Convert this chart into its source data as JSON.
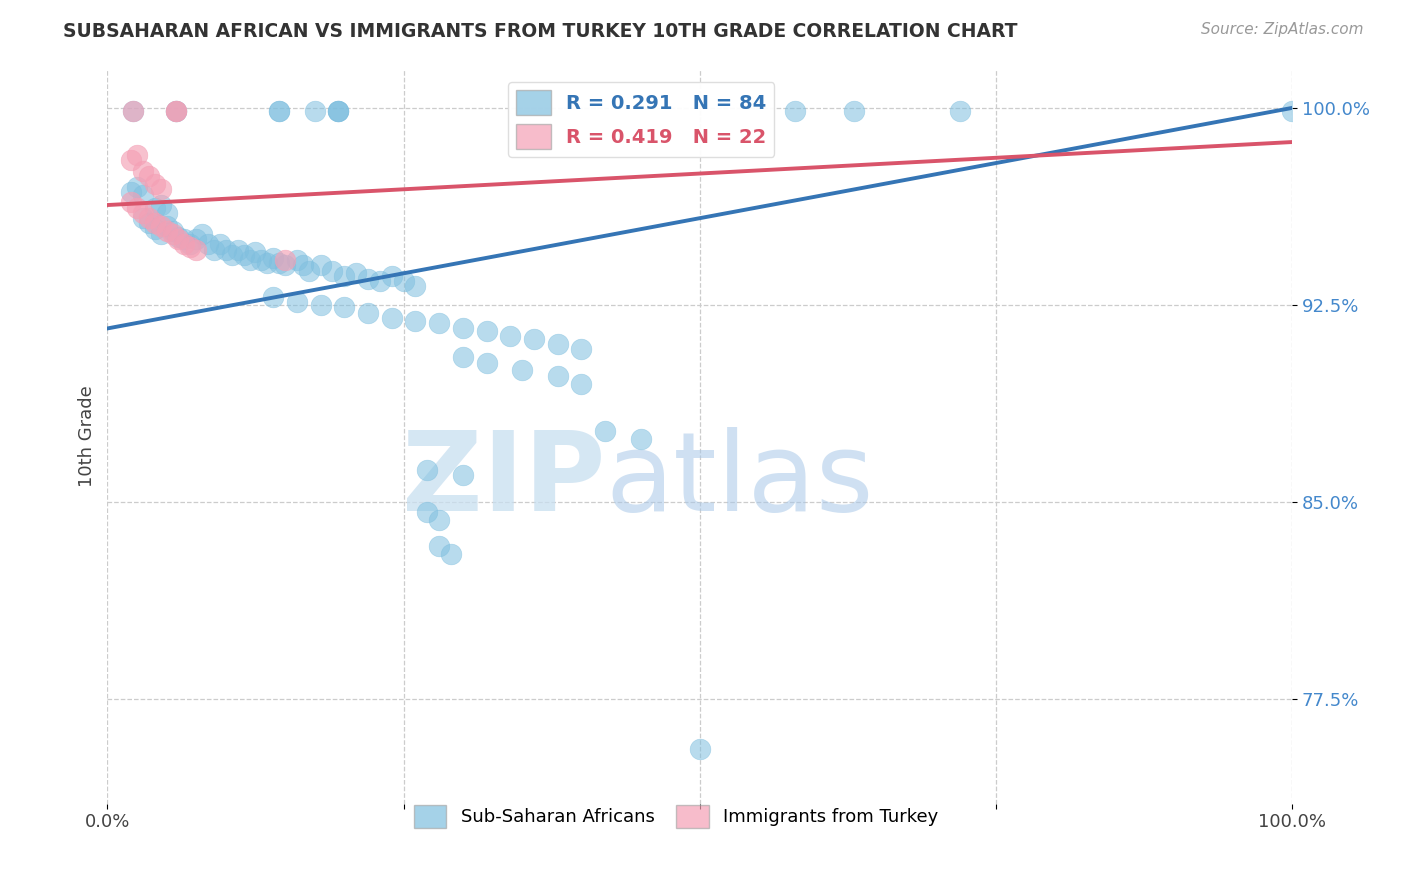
{
  "title": "SUBSAHARAN AFRICAN VS IMMIGRANTS FROM TURKEY 10TH GRADE CORRELATION CHART",
  "source": "Source: ZipAtlas.com",
  "ylabel": "10th Grade",
  "ytick_labels": [
    "100.0%",
    "92.5%",
    "85.0%",
    "77.5%"
  ],
  "ytick_values": [
    1.0,
    0.925,
    0.85,
    0.775
  ],
  "xlim": [
    0.0,
    1.0
  ],
  "ylim": [
    0.735,
    1.015
  ],
  "legend_blue_label": "Sub-Saharan Africans",
  "legend_pink_label": "Immigrants from Turkey",
  "R_blue": 0.291,
  "N_blue": 84,
  "R_pink": 0.419,
  "N_pink": 22,
  "blue_color": "#7fbfdf",
  "pink_color": "#f4a0b5",
  "blue_line_color": "#3575b5",
  "pink_line_color": "#d9546a",
  "watermark_zip": "ZIP",
  "watermark_atlas": "atlas",
  "blue_line_x": [
    0.0,
    1.0
  ],
  "blue_line_y": [
    0.916,
    1.0
  ],
  "pink_line_x": [
    0.0,
    1.0
  ],
  "pink_line_y": [
    0.963,
    0.987
  ],
  "blue_points": [
    [
      0.022,
      0.999
    ],
    [
      0.058,
      0.999
    ],
    [
      0.058,
      0.999
    ],
    [
      0.145,
      0.999
    ],
    [
      0.145,
      0.999
    ],
    [
      0.175,
      0.999
    ],
    [
      0.195,
      0.999
    ],
    [
      0.195,
      0.999
    ],
    [
      0.195,
      0.999
    ],
    [
      0.58,
      0.999
    ],
    [
      0.63,
      0.999
    ],
    [
      0.72,
      0.999
    ],
    [
      1.0,
      0.999
    ],
    [
      0.02,
      0.968
    ],
    [
      0.025,
      0.97
    ],
    [
      0.03,
      0.967
    ],
    [
      0.04,
      0.962
    ],
    [
      0.045,
      0.963
    ],
    [
      0.05,
      0.96
    ],
    [
      0.03,
      0.958
    ],
    [
      0.035,
      0.956
    ],
    [
      0.04,
      0.954
    ],
    [
      0.045,
      0.952
    ],
    [
      0.05,
      0.955
    ],
    [
      0.055,
      0.953
    ],
    [
      0.06,
      0.951
    ],
    [
      0.065,
      0.95
    ],
    [
      0.07,
      0.948
    ],
    [
      0.075,
      0.95
    ],
    [
      0.08,
      0.952
    ],
    [
      0.085,
      0.948
    ],
    [
      0.09,
      0.946
    ],
    [
      0.095,
      0.948
    ],
    [
      0.1,
      0.946
    ],
    [
      0.105,
      0.944
    ],
    [
      0.11,
      0.946
    ],
    [
      0.115,
      0.944
    ],
    [
      0.12,
      0.942
    ],
    [
      0.125,
      0.945
    ],
    [
      0.13,
      0.942
    ],
    [
      0.135,
      0.941
    ],
    [
      0.14,
      0.943
    ],
    [
      0.145,
      0.941
    ],
    [
      0.15,
      0.94
    ],
    [
      0.16,
      0.942
    ],
    [
      0.165,
      0.94
    ],
    [
      0.17,
      0.938
    ],
    [
      0.18,
      0.94
    ],
    [
      0.19,
      0.938
    ],
    [
      0.2,
      0.936
    ],
    [
      0.21,
      0.937
    ],
    [
      0.22,
      0.935
    ],
    [
      0.23,
      0.934
    ],
    [
      0.24,
      0.936
    ],
    [
      0.25,
      0.934
    ],
    [
      0.26,
      0.932
    ],
    [
      0.14,
      0.928
    ],
    [
      0.16,
      0.926
    ],
    [
      0.18,
      0.925
    ],
    [
      0.2,
      0.924
    ],
    [
      0.22,
      0.922
    ],
    [
      0.24,
      0.92
    ],
    [
      0.26,
      0.919
    ],
    [
      0.28,
      0.918
    ],
    [
      0.3,
      0.916
    ],
    [
      0.32,
      0.915
    ],
    [
      0.34,
      0.913
    ],
    [
      0.36,
      0.912
    ],
    [
      0.38,
      0.91
    ],
    [
      0.4,
      0.908
    ],
    [
      0.3,
      0.905
    ],
    [
      0.32,
      0.903
    ],
    [
      0.35,
      0.9
    ],
    [
      0.38,
      0.898
    ],
    [
      0.4,
      0.895
    ],
    [
      0.42,
      0.877
    ],
    [
      0.45,
      0.874
    ],
    [
      0.27,
      0.862
    ],
    [
      0.3,
      0.86
    ],
    [
      0.27,
      0.846
    ],
    [
      0.28,
      0.843
    ],
    [
      0.28,
      0.833
    ],
    [
      0.29,
      0.83
    ],
    [
      0.5,
      0.756
    ]
  ],
  "pink_points": [
    [
      0.022,
      0.999
    ],
    [
      0.058,
      0.999
    ],
    [
      0.058,
      0.999
    ],
    [
      0.02,
      0.98
    ],
    [
      0.025,
      0.982
    ],
    [
      0.03,
      0.976
    ],
    [
      0.035,
      0.974
    ],
    [
      0.04,
      0.971
    ],
    [
      0.045,
      0.969
    ],
    [
      0.02,
      0.964
    ],
    [
      0.025,
      0.962
    ],
    [
      0.03,
      0.96
    ],
    [
      0.035,
      0.958
    ],
    [
      0.04,
      0.956
    ],
    [
      0.045,
      0.955
    ],
    [
      0.05,
      0.953
    ],
    [
      0.055,
      0.952
    ],
    [
      0.06,
      0.95
    ],
    [
      0.065,
      0.948
    ],
    [
      0.07,
      0.947
    ],
    [
      0.075,
      0.946
    ],
    [
      0.15,
      0.942
    ]
  ]
}
